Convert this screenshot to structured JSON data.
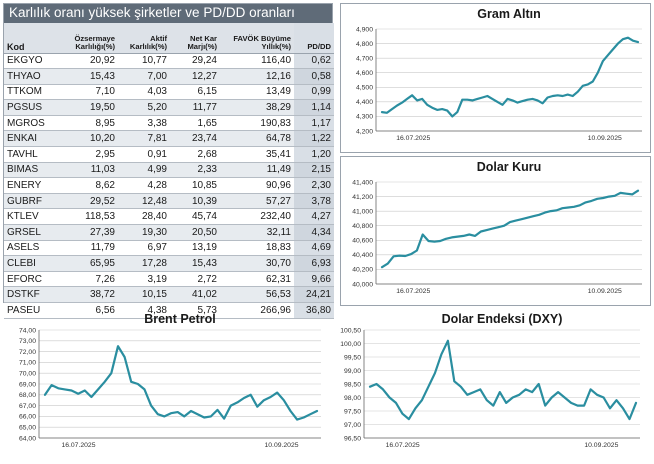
{
  "table": {
    "title": "Karlılık oranı yüksek şirketler ve PD/DD oranları",
    "headers": [
      "Kod",
      "Özsermaye Karlılığı(%)",
      "Aktif Karlılık(%)",
      "Net Kar Marjı(%)",
      "FAVÖK Büyüme Yıllık(%)",
      "PD/DD"
    ],
    "rows": [
      [
        "EKGYO",
        "20,92",
        "10,77",
        "29,24",
        "116,40",
        "0,62"
      ],
      [
        "THYAO",
        "15,43",
        "7,00",
        "12,27",
        "12,16",
        "0,58"
      ],
      [
        "TTKOM",
        "7,10",
        "4,03",
        "6,15",
        "13,49",
        "0,99"
      ],
      [
        "PGSUS",
        "19,50",
        "5,20",
        "11,77",
        "38,29",
        "1,14"
      ],
      [
        "MGROS",
        "8,95",
        "3,38",
        "1,65",
        "190,83",
        "1,17"
      ],
      [
        "ENKAI",
        "10,20",
        "7,81",
        "23,74",
        "64,78",
        "1,22"
      ],
      [
        "TAVHL",
        "2,95",
        "0,91",
        "2,68",
        "35,41",
        "1,20"
      ],
      [
        "BIMAS",
        "11,03",
        "4,99",
        "2,33",
        "11,49",
        "2,15"
      ],
      [
        "ENERY",
        "8,62",
        "4,28",
        "10,85",
        "90,96",
        "2,30"
      ],
      [
        "GUBRF",
        "29,52",
        "12,48",
        "10,39",
        "57,27",
        "3,78"
      ],
      [
        "KTLEV",
        "118,53",
        "28,40",
        "45,74",
        "232,40",
        "4,27"
      ],
      [
        "GRSEL",
        "27,39",
        "19,30",
        "20,50",
        "32,11",
        "4,34"
      ],
      [
        "ASELS",
        "11,79",
        "6,97",
        "13,19",
        "18,83",
        "4,69"
      ],
      [
        "CLEBI",
        "65,95",
        "17,28",
        "15,43",
        "30,70",
        "6,93"
      ],
      [
        "EFORC",
        "7,26",
        "3,19",
        "2,72",
        "62,31",
        "9,66"
      ],
      [
        "DSTKF",
        "38,72",
        "10,15",
        "41,02",
        "56,53",
        "24,21"
      ],
      [
        "PASEU",
        "6,56",
        "4,38",
        "5,73",
        "266,96",
        "36,80"
      ]
    ]
  },
  "colors": {
    "line": "#2a8ea0",
    "table_header_bg": "#5f6b78",
    "row_alt": "#e7ebef"
  },
  "chart_data": [
    {
      "id": "gold",
      "type": "line",
      "title": "Gram Altın",
      "xlabel": "",
      "ylabel": "",
      "ylim": [
        4200,
        4900
      ],
      "y_ticks": [
        4200,
        4300,
        4400,
        4500,
        4600,
        4700,
        4800,
        4900
      ],
      "y_tick_labels": [
        "4,200",
        "4,300",
        "4,400",
        "4,500",
        "4,600",
        "4,700",
        "4,800",
        "4,900"
      ],
      "x_tick_labels": [
        "16.07.2025",
        "10.09.2025"
      ],
      "grid": true,
      "series": [
        {
          "values": [
            4330,
            4325,
            4350,
            4375,
            4395,
            4420,
            4445,
            4410,
            4420,
            4380,
            4360,
            4345,
            4350,
            4340,
            4300,
            4330,
            4415,
            4415,
            4410,
            4420,
            4430,
            4440,
            4420,
            4400,
            4380,
            4420,
            4410,
            4395,
            4405,
            4415,
            4420,
            4410,
            4390,
            4430,
            4440,
            4445,
            4440,
            4450,
            4440,
            4470,
            4510,
            4520,
            4540,
            4600,
            4680,
            4720,
            4760,
            4800,
            4830,
            4840,
            4820,
            4810
          ]
        }
      ]
    },
    {
      "id": "usd",
      "type": "line",
      "title": "Dolar Kuru",
      "xlabel": "",
      "ylabel": "",
      "ylim": [
        40000,
        41400
      ],
      "y_ticks": [
        40000,
        40200,
        40400,
        40600,
        40800,
        41000,
        41200,
        41400
      ],
      "y_tick_labels": [
        "40,000",
        "40,200",
        "40,400",
        "40,600",
        "40,800",
        "41,000",
        "41,200",
        "41,400"
      ],
      "x_tick_labels": [
        "16.07.2025",
        "10.09.2025"
      ],
      "grid": true,
      "series": [
        {
          "values": [
            40230,
            40280,
            40380,
            40390,
            40385,
            40410,
            40460,
            40680,
            40590,
            40580,
            40590,
            40620,
            40640,
            40650,
            40660,
            40680,
            40660,
            40720,
            40740,
            40760,
            40780,
            40800,
            40850,
            40870,
            40890,
            40910,
            40930,
            40950,
            40980,
            41000,
            41010,
            41040,
            41050,
            41060,
            41080,
            41120,
            41140,
            41170,
            41180,
            41200,
            41210,
            41250,
            41240,
            41230,
            41280
          ]
        }
      ]
    },
    {
      "id": "brent",
      "type": "line",
      "title": "Brent Petrol",
      "xlabel": "",
      "ylabel": "",
      "ylim": [
        64.0,
        74.0
      ],
      "y_ticks": [
        64,
        65,
        66,
        67,
        68,
        69,
        70,
        71,
        72,
        73,
        74
      ],
      "y_tick_labels": [
        "64,00",
        "65,00",
        "66,00",
        "67,00",
        "68,00",
        "69,00",
        "70,00",
        "71,00",
        "72,00",
        "73,00",
        "74,00"
      ],
      "x_tick_labels": [
        "16.07.2025",
        "10.09.2025"
      ],
      "grid": true,
      "series": [
        {
          "values": [
            68.0,
            68.9,
            68.6,
            68.5,
            68.4,
            68.1,
            68.4,
            67.8,
            68.5,
            69.2,
            70.0,
            72.5,
            71.5,
            69.2,
            69.0,
            68.5,
            67.0,
            66.2,
            66.0,
            66.3,
            66.4,
            66.0,
            66.5,
            66.2,
            65.9,
            66.0,
            66.6,
            65.8,
            67.0,
            67.3,
            67.7,
            68.0,
            66.9,
            67.5,
            67.8,
            68.2,
            67.5,
            66.5,
            65.7,
            65.9,
            66.2,
            66.5
          ]
        }
      ]
    },
    {
      "id": "dxy",
      "type": "line",
      "title": "Dolar Endeksi (DXY)",
      "xlabel": "",
      "ylabel": "",
      "ylim": [
        96.5,
        100.5
      ],
      "y_ticks": [
        96.5,
        97.0,
        97.5,
        98.0,
        98.5,
        99.0,
        99.5,
        100.0,
        100.5
      ],
      "y_tick_labels": [
        "96,50",
        "97,00",
        "97,50",
        "98,00",
        "98,50",
        "99,00",
        "99,50",
        "100,00",
        "100,50"
      ],
      "x_tick_labels": [
        "16.07.2025",
        "10.09.2025"
      ],
      "grid": true,
      "series": [
        {
          "values": [
            98.4,
            98.5,
            98.3,
            98.0,
            97.8,
            97.4,
            97.2,
            97.6,
            97.9,
            98.4,
            98.9,
            99.6,
            100.1,
            98.6,
            98.4,
            98.1,
            98.2,
            98.3,
            97.9,
            97.7,
            98.2,
            97.8,
            98.0,
            98.1,
            98.3,
            98.2,
            98.5,
            97.7,
            98.0,
            98.2,
            98.0,
            97.8,
            97.7,
            97.7,
            98.3,
            98.1,
            98.0,
            97.6,
            97.9,
            97.6,
            97.2,
            97.8
          ]
        }
      ]
    }
  ]
}
